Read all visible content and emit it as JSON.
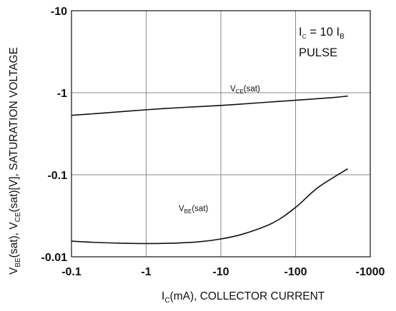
{
  "chart_data": {
    "type": "line",
    "x_scale": "log",
    "y_scale": "log",
    "xlim": [
      -0.1,
      -1000
    ],
    "ylim": [
      -0.01,
      -10
    ],
    "grid": true,
    "x_ticks": [
      "-0.1",
      "-1",
      "-10",
      "-100",
      "-1000"
    ],
    "y_ticks": [
      "-0.01",
      "-0.1",
      "-1",
      "-10"
    ],
    "xlabel": {
      "main": "I",
      "sub": "C",
      "rest": "(mA), COLLECTOR CURRENT"
    },
    "ylabel": {
      "p1": "V",
      "s1": "BE",
      "p2": "(sat), V",
      "s2": "CE",
      "p3": "(sat)[V], SATURATION VOLTAGE"
    },
    "annotation": {
      "line1_a": "I",
      "line1_sub_a": "C",
      "line1_b": " = 10 I",
      "line1_sub_b": "B",
      "line2": "PULSE"
    },
    "series": [
      {
        "label_main": "V",
        "label_sub": "CE",
        "label_rest": "(sat)",
        "x": [
          -0.1,
          -0.3,
          -1,
          -3,
          -10,
          -30,
          -100,
          -300,
          -500
        ],
        "y": [
          -0.53,
          -0.57,
          -0.62,
          -0.66,
          -0.7,
          -0.75,
          -0.81,
          -0.87,
          -0.91
        ]
      },
      {
        "label_main": "V",
        "label_sub": "BE",
        "label_rest": "(sat)",
        "x": [
          -0.1,
          -0.2,
          -0.5,
          -1,
          -2,
          -5,
          -10,
          -20,
          -50,
          -100,
          -200,
          -500
        ],
        "y": [
          -0.0155,
          -0.015,
          -0.0146,
          -0.0145,
          -0.0146,
          -0.0152,
          -0.0165,
          -0.019,
          -0.026,
          -0.04,
          -0.07,
          -0.1185
        ]
      }
    ]
  }
}
